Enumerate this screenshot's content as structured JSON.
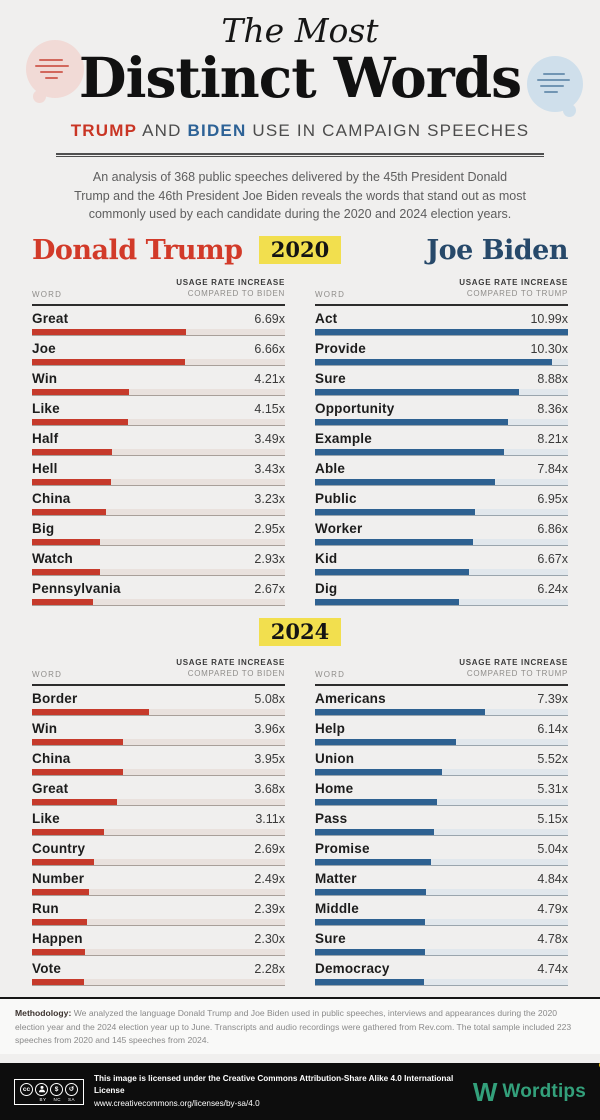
{
  "header": {
    "title_top": "The Most",
    "title_main": "Distinct Words",
    "subtitle": {
      "trump": "TRUMP",
      "and": " AND ",
      "biden": "BIDEN",
      "rest": " USE IN CAMPAIGN SPEECHES"
    },
    "intro": "An analysis of 368 public speeches delivered by the 45th President Donald Trump and the 46th President Joe Biden reveals the words that stand out as most commonly used by each candidate during the 2020 and 2024 election years."
  },
  "colors": {
    "trump_red": "#c63a2b",
    "biden_blue": "#2e6191",
    "biden_navy": "#27496a",
    "year_highlight": "#f2df4e",
    "wordtips_green": "#33a07b",
    "background": "#f0efee"
  },
  "sections": [
    {
      "year": "2020",
      "left_candidate": "Donald Trump",
      "right_candidate": "Joe Biden",
      "panels": [
        {
          "chart": 0,
          "col_word": "WORD",
          "col_value_1": "USAGE RATE INCREASE",
          "col_value_2": "COMPARED TO BIDEN"
        },
        {
          "chart": 1,
          "col_word": "WORD",
          "col_value_1": "USAGE RATE INCREASE",
          "col_value_2": "COMPARED TO TRUMP"
        }
      ]
    },
    {
      "year": "2024",
      "panels": [
        {
          "chart": 2,
          "col_word": "WORD",
          "col_value_1": "USAGE RATE INCREASE",
          "col_value_2": "COMPARED TO BIDEN"
        },
        {
          "chart": 3,
          "col_word": "WORD",
          "col_value_1": "USAGE RATE INCREASE",
          "col_value_2": "COMPARED TO TRUMP"
        }
      ]
    }
  ],
  "chart_data": [
    {
      "type": "bar",
      "orientation": "horizontal",
      "title": "Donald Trump 2020",
      "value_label": "Usage rate increase compared to Biden",
      "value_suffix": "x",
      "categories": [
        "Great",
        "Joe",
        "Win",
        "Like",
        "Half",
        "Hell",
        "China",
        "Big",
        "Watch",
        "Pennsylvania"
      ],
      "values": [
        6.69,
        6.66,
        4.21,
        4.15,
        3.49,
        3.43,
        3.23,
        2.95,
        2.93,
        2.67
      ],
      "xlim": [
        0,
        10.99
      ],
      "bar_color": "#c63a2b"
    },
    {
      "type": "bar",
      "orientation": "horizontal",
      "title": "Joe Biden 2020",
      "value_label": "Usage rate increase compared to Trump",
      "value_suffix": "x",
      "categories": [
        "Act",
        "Provide",
        "Sure",
        "Opportunity",
        "Example",
        "Able",
        "Public",
        "Worker",
        "Kid",
        "Dig"
      ],
      "values": [
        10.99,
        10.3,
        8.88,
        8.36,
        8.21,
        7.84,
        6.95,
        6.86,
        6.67,
        6.24
      ],
      "xlim": [
        0,
        10.99
      ],
      "bar_color": "#2e6191"
    },
    {
      "type": "bar",
      "orientation": "horizontal",
      "title": "Donald Trump 2024",
      "value_label": "Usage rate increase compared to Biden",
      "value_suffix": "x",
      "categories": [
        "Border",
        "Win",
        "China",
        "Great",
        "Like",
        "Country",
        "Number",
        "Run",
        "Happen",
        "Vote"
      ],
      "values": [
        5.08,
        3.96,
        3.95,
        3.68,
        3.11,
        2.69,
        2.49,
        2.39,
        2.3,
        2.28
      ],
      "xlim": [
        0,
        10.99
      ],
      "bar_color": "#c63a2b"
    },
    {
      "type": "bar",
      "orientation": "horizontal",
      "title": "Joe Biden 2024",
      "value_label": "Usage rate increase compared to Trump",
      "value_suffix": "x",
      "categories": [
        "Americans",
        "Help",
        "Union",
        "Home",
        "Pass",
        "Promise",
        "Matter",
        "Middle",
        "Sure",
        "Democracy"
      ],
      "values": [
        7.39,
        6.14,
        5.52,
        5.31,
        5.15,
        5.04,
        4.84,
        4.79,
        4.78,
        4.74
      ],
      "xlim": [
        0,
        10.99
      ],
      "bar_color": "#2e6191"
    }
  ],
  "footer": {
    "methodology_label": "Methodology:",
    "methodology_text": " We analyzed the language Donald Trump and Joe Biden used in public speeches, interviews and appearances during the 2020 election year and the 2024 election year up to June. Transcripts and audio recordings were gathered from Rev.com. The total sample included 223 speeches from 2020 and 145 speeches from 2024.",
    "cc_icon": "cc",
    "cc_labels": [
      "BY",
      "NC",
      "SA"
    ],
    "license_line1": "This image is licensed under the Creative Commons Attribution-Share Alike 4.0 International License",
    "license_line2": "www.creativecommons.org/licenses/by-sa/4.0",
    "brand_mark": "W",
    "brand_name": "Wordtips"
  }
}
